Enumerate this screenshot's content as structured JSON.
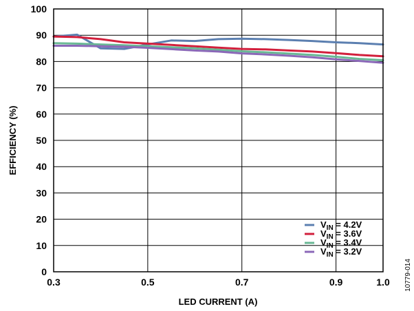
{
  "chart_data": {
    "type": "line",
    "title": "",
    "xlabel": "LED CURRENT (A)",
    "ylabel": "EFFICIENCY (%)",
    "xlim": [
      0.3,
      1.0
    ],
    "ylim": [
      0,
      100
    ],
    "x_ticks": [
      "0.3",
      "0.5",
      "0.7",
      "0.9",
      "1.0"
    ],
    "x_tick_values": [
      0.3,
      0.5,
      0.7,
      0.9,
      1.0
    ],
    "y_ticks": [
      "0",
      "10",
      "20",
      "30",
      "40",
      "50",
      "60",
      "70",
      "80",
      "90",
      "100"
    ],
    "grid": true,
    "legend_position": "bottom-right",
    "series": [
      {
        "name_main": "V",
        "name_sub": "IN",
        "name_rest": " = 4.2V",
        "color": "#5b7fb0",
        "x": [
          0.3,
          0.35,
          0.4,
          0.45,
          0.5,
          0.55,
          0.6,
          0.65,
          0.7,
          0.75,
          0.8,
          0.85,
          0.9,
          0.95,
          1.0
        ],
        "y": [
          89.5,
          90.2,
          85.0,
          84.8,
          86.5,
          88.0,
          87.8,
          88.5,
          88.7,
          88.5,
          88.2,
          87.8,
          87.3,
          87.0,
          86.5
        ]
      },
      {
        "name_main": "V",
        "name_sub": "IN",
        "name_rest": " = 3.6V",
        "color": "#d21f3c",
        "x": [
          0.3,
          0.35,
          0.4,
          0.45,
          0.5,
          0.55,
          0.6,
          0.65,
          0.7,
          0.75,
          0.8,
          0.85,
          0.9,
          0.95,
          1.0
        ],
        "y": [
          89.5,
          89.3,
          88.5,
          87.3,
          86.8,
          86.3,
          85.8,
          85.3,
          84.8,
          84.6,
          84.2,
          83.8,
          83.2,
          82.5,
          82.0
        ]
      },
      {
        "name_main": "V",
        "name_sub": "IN",
        "name_rest": " = 3.4V",
        "color": "#69b894",
        "x": [
          0.3,
          0.35,
          0.4,
          0.45,
          0.5,
          0.55,
          0.6,
          0.65,
          0.7,
          0.75,
          0.8,
          0.85,
          0.9,
          0.95,
          1.0
        ],
        "y": [
          87.0,
          86.8,
          86.5,
          86.2,
          85.8,
          85.4,
          85.0,
          84.5,
          83.9,
          83.5,
          83.0,
          82.5,
          81.8,
          81.0,
          80.5
        ]
      },
      {
        "name_main": "V",
        "name_sub": "IN",
        "name_rest": " = 3.2V",
        "color": "#8b68b8",
        "x": [
          0.3,
          0.35,
          0.4,
          0.45,
          0.5,
          0.55,
          0.6,
          0.65,
          0.7,
          0.75,
          0.8,
          0.85,
          0.9,
          0.95,
          1.0
        ],
        "y": [
          86.0,
          86.0,
          85.8,
          85.6,
          85.2,
          84.7,
          84.2,
          83.8,
          83.1,
          82.7,
          82.2,
          81.6,
          80.8,
          80.2,
          79.5
        ]
      }
    ]
  },
  "figure_id": "10779-014"
}
